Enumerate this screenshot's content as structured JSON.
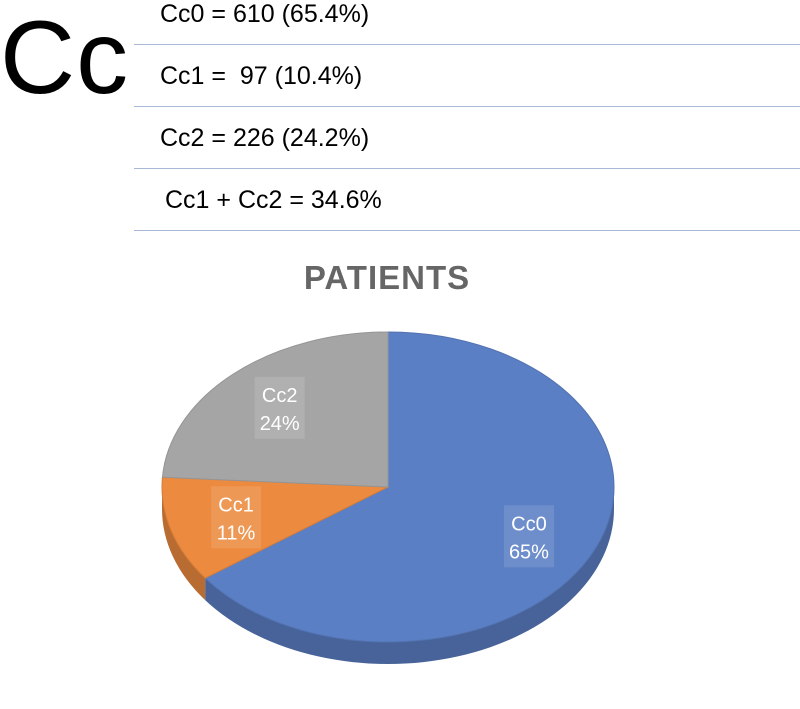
{
  "header": {
    "big_label": "Cc",
    "rows": [
      "Cc0 = 610 (65.4%)",
      "Cc1 =  97 (10.4%)",
      "Cc2 = 226 (24.2%)",
      "Cc1 + Cc2 = 34.6%"
    ]
  },
  "chart_data": {
    "type": "pie",
    "title": "PATIENTS",
    "style": "3d",
    "categories": [
      "Cc0",
      "Cc1",
      "Cc2"
    ],
    "values": [
      65,
      11,
      24
    ],
    "data_labels": [
      {
        "name": "Cc0",
        "pct": "65%"
      },
      {
        "name": "Cc1",
        "pct": "11%"
      },
      {
        "name": "Cc2",
        "pct": "24%"
      }
    ],
    "colors": {
      "Cc0": "#5b7fc4",
      "Cc1": "#ec8a3f",
      "Cc2": "#a5a5a5"
    }
  }
}
